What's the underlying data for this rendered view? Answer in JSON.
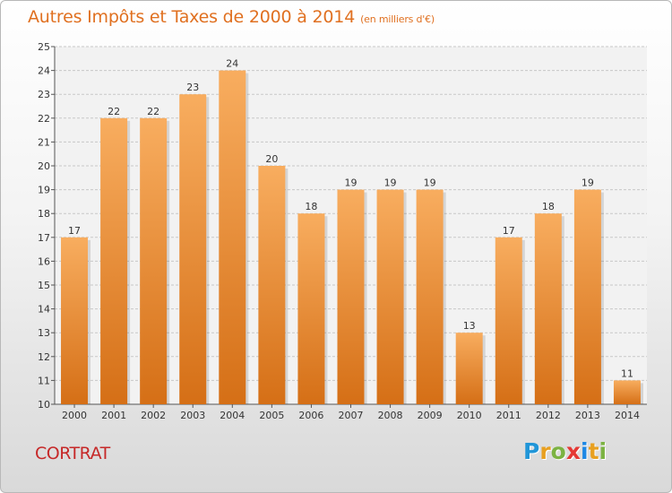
{
  "title": "Autres Impôts et Taxes de 2000 à 2014",
  "title_unit": "(en milliers d'€)",
  "place": "CORTRAT",
  "logo": {
    "text": "Proxiti",
    "letters": [
      "P",
      "r",
      "o",
      "x",
      "i",
      "t",
      "i"
    ],
    "colors": [
      "#2196d8",
      "#e8a020",
      "#7cb342",
      "#e53935",
      "#1e88e5",
      "#e8a020",
      "#7cb342"
    ]
  },
  "colors": {
    "bar_light": "#f8ad5f",
    "bar_dark": "#d56f16",
    "title": "#e07020",
    "place": "#c62828"
  },
  "chart_data": {
    "type": "bar",
    "title": "Autres Impôts et Taxes de 2000 à 2014",
    "subtitle": "(en milliers d'€)",
    "categories": [
      "2000",
      "2001",
      "2002",
      "2003",
      "2004",
      "2005",
      "2006",
      "2007",
      "2008",
      "2009",
      "2010",
      "2011",
      "2012",
      "2013",
      "2014"
    ],
    "values": [
      17,
      22,
      22,
      23,
      24,
      20,
      18,
      19,
      19,
      19,
      13,
      17,
      18,
      19,
      11
    ],
    "data_labels": [
      "17",
      "22",
      "22",
      "23",
      "24",
      "20",
      "18",
      "19",
      "19",
      "19",
      "13",
      "17",
      "18",
      "19",
      "11"
    ],
    "yticks": [
      "10",
      "11",
      "12",
      "13",
      "14",
      "15",
      "16",
      "17",
      "18",
      "19",
      "20",
      "21",
      "22",
      "23",
      "24",
      "25"
    ],
    "ylim": [
      10,
      25
    ],
    "grid": true,
    "xlabel": "",
    "ylabel": ""
  }
}
